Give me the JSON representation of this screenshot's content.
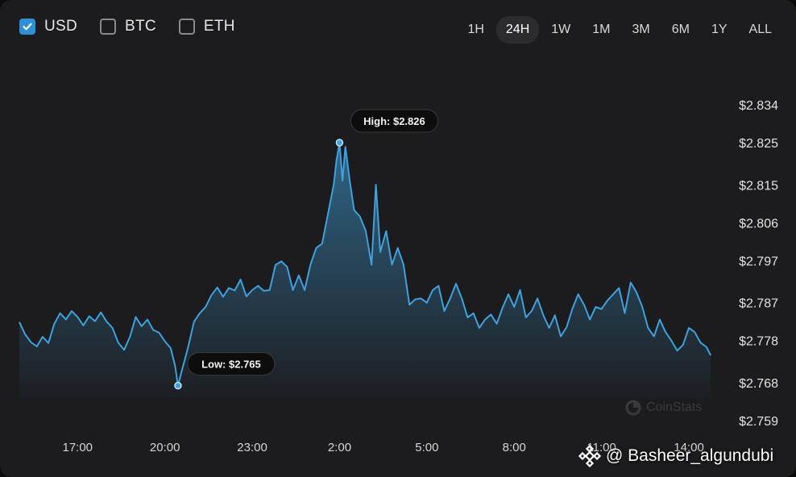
{
  "currency_toggles": [
    {
      "label": "USD",
      "checked": true
    },
    {
      "label": "BTC",
      "checked": false
    },
    {
      "label": "ETH",
      "checked": false
    }
  ],
  "time_ranges": [
    "1H",
    "24H",
    "1W",
    "1M",
    "3M",
    "6M",
    "1Y",
    "ALL"
  ],
  "active_range": "24H",
  "brand_label": "CoinStats",
  "watermark": "@ Basheer_algundubi",
  "colors": {
    "line": "#3fa1dd",
    "accent": "#2e8fd6",
    "background": "#1c1c1e",
    "label_bg": "#0d0d0d"
  },
  "chart_data": {
    "type": "area",
    "x_tick_labels": [
      "17:00",
      "20:00",
      "23:00",
      "2:00",
      "5:00",
      "8:00",
      "11:00",
      "14:00"
    ],
    "y_tick_labels": [
      "$2.834",
      "$2.825",
      "$2.815",
      "$2.806",
      "$2.797",
      "$2.787",
      "$2.778",
      "$2.768",
      "$2.759"
    ],
    "ylim": [
      2.759,
      2.834
    ],
    "y_ticks": [
      2.834,
      2.825,
      2.815,
      2.806,
      2.797,
      2.787,
      2.778,
      2.768,
      2.759
    ],
    "x_range_hours": [
      15.0,
      39.3
    ],
    "x_ticks_hours": [
      17,
      20,
      23,
      26,
      29,
      32,
      35,
      38
    ],
    "grid": false,
    "series": [
      {
        "points": [
          [
            15.0,
            2.7824
          ],
          [
            15.2,
            2.7795
          ],
          [
            15.4,
            2.7776
          ],
          [
            15.6,
            2.7766
          ],
          [
            15.8,
            2.7789
          ],
          [
            16.0,
            2.7774
          ],
          [
            16.2,
            2.782
          ],
          [
            16.4,
            2.7845
          ],
          [
            16.6,
            2.783
          ],
          [
            16.8,
            2.785
          ],
          [
            17.0,
            2.7836
          ],
          [
            17.2,
            2.7816
          ],
          [
            17.4,
            2.7838
          ],
          [
            17.6,
            2.7826
          ],
          [
            17.8,
            2.7847
          ],
          [
            18.0,
            2.7825
          ],
          [
            18.2,
            2.781
          ],
          [
            18.4,
            2.7775
          ],
          [
            18.6,
            2.7758
          ],
          [
            18.8,
            2.7789
          ],
          [
            19.0,
            2.7836
          ],
          [
            19.2,
            2.7814
          ],
          [
            19.4,
            2.783
          ],
          [
            19.6,
            2.7805
          ],
          [
            19.8,
            2.7799
          ],
          [
            20.0,
            2.7778
          ],
          [
            20.2,
            2.7762
          ],
          [
            20.35,
            2.772
          ],
          [
            20.45,
            2.7673
          ],
          [
            20.55,
            2.77
          ],
          [
            20.8,
            2.7765
          ],
          [
            21.0,
            2.7825
          ],
          [
            21.2,
            2.7845
          ],
          [
            21.4,
            2.786
          ],
          [
            21.6,
            2.7888
          ],
          [
            21.8,
            2.7906
          ],
          [
            22.0,
            2.7884
          ],
          [
            22.2,
            2.7905
          ],
          [
            22.4,
            2.7899
          ],
          [
            22.6,
            2.7925
          ],
          [
            22.8,
            2.7885
          ],
          [
            23.0,
            2.79
          ],
          [
            23.2,
            2.791
          ],
          [
            23.4,
            2.7898
          ],
          [
            23.6,
            2.79
          ],
          [
            23.8,
            2.796
          ],
          [
            24.0,
            2.7968
          ],
          [
            24.2,
            2.7955
          ],
          [
            24.4,
            2.79
          ],
          [
            24.6,
            2.7935
          ],
          [
            24.8,
            2.79
          ],
          [
            25.0,
            2.796
          ],
          [
            25.2,
            2.8
          ],
          [
            25.4,
            2.801
          ],
          [
            25.6,
            2.808
          ],
          [
            25.8,
            2.815
          ],
          [
            25.9,
            2.821
          ],
          [
            26.0,
            2.825
          ],
          [
            26.1,
            2.816
          ],
          [
            26.2,
            2.824
          ],
          [
            26.35,
            2.816
          ],
          [
            26.5,
            2.809
          ],
          [
            26.7,
            2.8075
          ],
          [
            26.9,
            2.804
          ],
          [
            27.1,
            2.796
          ],
          [
            27.25,
            2.815
          ],
          [
            27.4,
            2.799
          ],
          [
            27.6,
            2.804
          ],
          [
            27.8,
            2.796
          ],
          [
            28.0,
            2.8
          ],
          [
            28.2,
            2.796
          ],
          [
            28.4,
            2.7865
          ],
          [
            28.6,
            2.7878
          ],
          [
            28.8,
            2.788
          ],
          [
            29.0,
            2.787
          ],
          [
            29.2,
            2.79
          ],
          [
            29.4,
            2.791
          ],
          [
            29.6,
            2.785
          ],
          [
            29.8,
            2.788
          ],
          [
            30.0,
            2.7915
          ],
          [
            30.2,
            2.788
          ],
          [
            30.4,
            2.7835
          ],
          [
            30.6,
            2.7845
          ],
          [
            30.8,
            2.781
          ],
          [
            31.0,
            2.783
          ],
          [
            31.2,
            2.7842
          ],
          [
            31.4,
            2.782
          ],
          [
            31.6,
            2.7858
          ],
          [
            31.8,
            2.789
          ],
          [
            32.0,
            2.786
          ],
          [
            32.2,
            2.79
          ],
          [
            32.4,
            2.7835
          ],
          [
            32.6,
            2.785
          ],
          [
            32.8,
            2.788
          ],
          [
            33.0,
            2.784
          ],
          [
            33.2,
            2.781
          ],
          [
            33.4,
            2.784
          ],
          [
            33.6,
            2.779
          ],
          [
            33.8,
            2.7812
          ],
          [
            34.0,
            2.7856
          ],
          [
            34.2,
            2.789
          ],
          [
            34.4,
            2.7865
          ],
          [
            34.6,
            2.783
          ],
          [
            34.8,
            2.786
          ],
          [
            35.0,
            2.7855
          ],
          [
            35.2,
            2.7875
          ],
          [
            35.4,
            2.789
          ],
          [
            35.6,
            2.7905
          ],
          [
            35.8,
            2.7845
          ],
          [
            36.0,
            2.7918
          ],
          [
            36.2,
            2.7895
          ],
          [
            36.4,
            2.786
          ],
          [
            36.6,
            2.781
          ],
          [
            36.8,
            2.779
          ],
          [
            37.0,
            2.783
          ],
          [
            37.2,
            2.78
          ],
          [
            37.4,
            2.778
          ],
          [
            37.6,
            2.7756
          ],
          [
            37.8,
            2.777
          ],
          [
            38.0,
            2.781
          ],
          [
            38.2,
            2.78
          ],
          [
            38.4,
            2.7775
          ],
          [
            38.6,
            2.7765
          ],
          [
            38.75,
            2.7745
          ]
        ]
      }
    ],
    "annotations": [
      {
        "label": "High: $2.826",
        "x": 26.0,
        "y": 2.825
      },
      {
        "label": "Low: $2.765",
        "x": 20.45,
        "y": 2.7673
      }
    ]
  }
}
